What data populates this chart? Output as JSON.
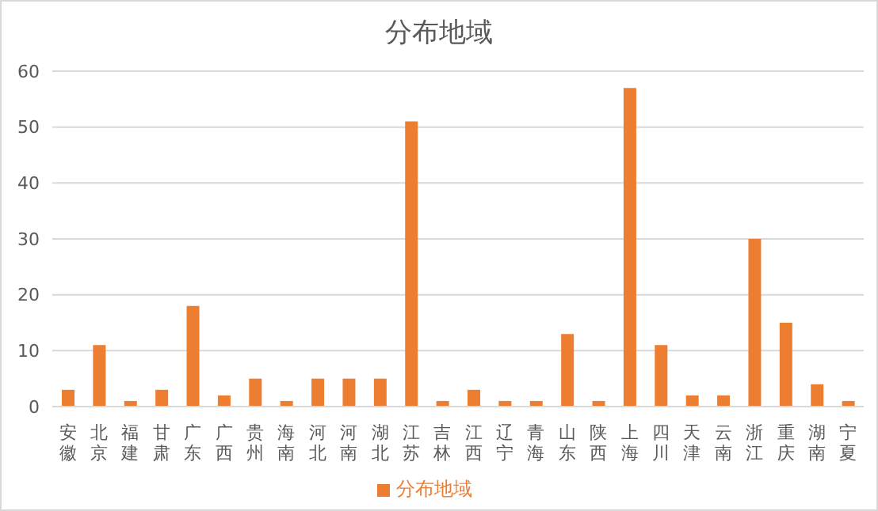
{
  "chart_data": {
    "type": "bar",
    "title": "分布地域",
    "categories": [
      "安徽",
      "北京",
      "福建",
      "甘肃",
      "广东",
      "广西",
      "贵州",
      "海南",
      "河北",
      "河南",
      "湖北",
      "江苏",
      "吉林",
      "江西",
      "辽宁",
      "青海",
      "山东",
      "陕西",
      "上海",
      "四川",
      "天津",
      "云南",
      "浙江",
      "重庆",
      "湖南",
      "宁夏"
    ],
    "series": [
      {
        "name": "分布地域",
        "color": "#ed7d31",
        "values": [
          3,
          11,
          1,
          3,
          18,
          2,
          5,
          1,
          5,
          5,
          5,
          51,
          1,
          3,
          1,
          1,
          13,
          1,
          57,
          11,
          2,
          2,
          30,
          15,
          4,
          1
        ]
      }
    ],
    "ylim": [
      0,
      60
    ],
    "yticks": [
      0,
      10,
      20,
      30,
      40,
      50,
      60
    ],
    "grid": "y",
    "legend": "bottom"
  }
}
